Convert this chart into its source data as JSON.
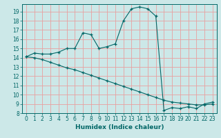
{
  "xlabel": "Humidex (Indice chaleur)",
  "bg_color": "#cce8e8",
  "grid_color": "#e8a0a0",
  "line_color": "#006666",
  "marker": "+",
  "xlim": [
    -0.5,
    23.5
  ],
  "ylim": [
    8,
    19.8
  ],
  "xticks": [
    0,
    1,
    2,
    3,
    4,
    5,
    6,
    7,
    8,
    9,
    10,
    11,
    12,
    13,
    14,
    15,
    16,
    17,
    18,
    19,
    20,
    21,
    22,
    23
  ],
  "yticks": [
    8,
    9,
    10,
    11,
    12,
    13,
    14,
    15,
    16,
    17,
    18,
    19
  ],
  "line1_x": [
    0,
    1,
    2,
    3,
    4,
    5,
    6,
    7,
    8,
    9,
    10,
    11,
    12,
    13,
    14,
    15,
    16,
    17,
    18,
    19,
    20,
    21,
    22,
    23
  ],
  "line1_y": [
    14.1,
    14.5,
    14.4,
    14.4,
    14.6,
    15.0,
    15.0,
    16.7,
    16.5,
    15.0,
    15.2,
    15.5,
    18.0,
    19.3,
    19.5,
    19.3,
    18.5,
    8.3,
    8.6,
    8.5,
    8.7,
    8.5,
    9.0,
    9.2
  ],
  "line2_x": [
    0,
    1,
    2,
    3,
    4,
    5,
    6,
    7,
    8,
    9,
    10,
    11,
    12,
    13,
    14,
    15,
    16,
    17,
    18,
    19,
    20,
    21,
    22,
    23
  ],
  "line2_y": [
    14.1,
    14.0,
    13.8,
    13.5,
    13.2,
    12.9,
    12.7,
    12.4,
    12.1,
    11.8,
    11.5,
    11.2,
    10.9,
    10.6,
    10.3,
    10.0,
    9.7,
    9.4,
    9.2,
    9.1,
    9.0,
    8.9,
    8.9,
    9.0
  ],
  "tick_fontsize": 5.5,
  "xlabel_fontsize": 6.5
}
